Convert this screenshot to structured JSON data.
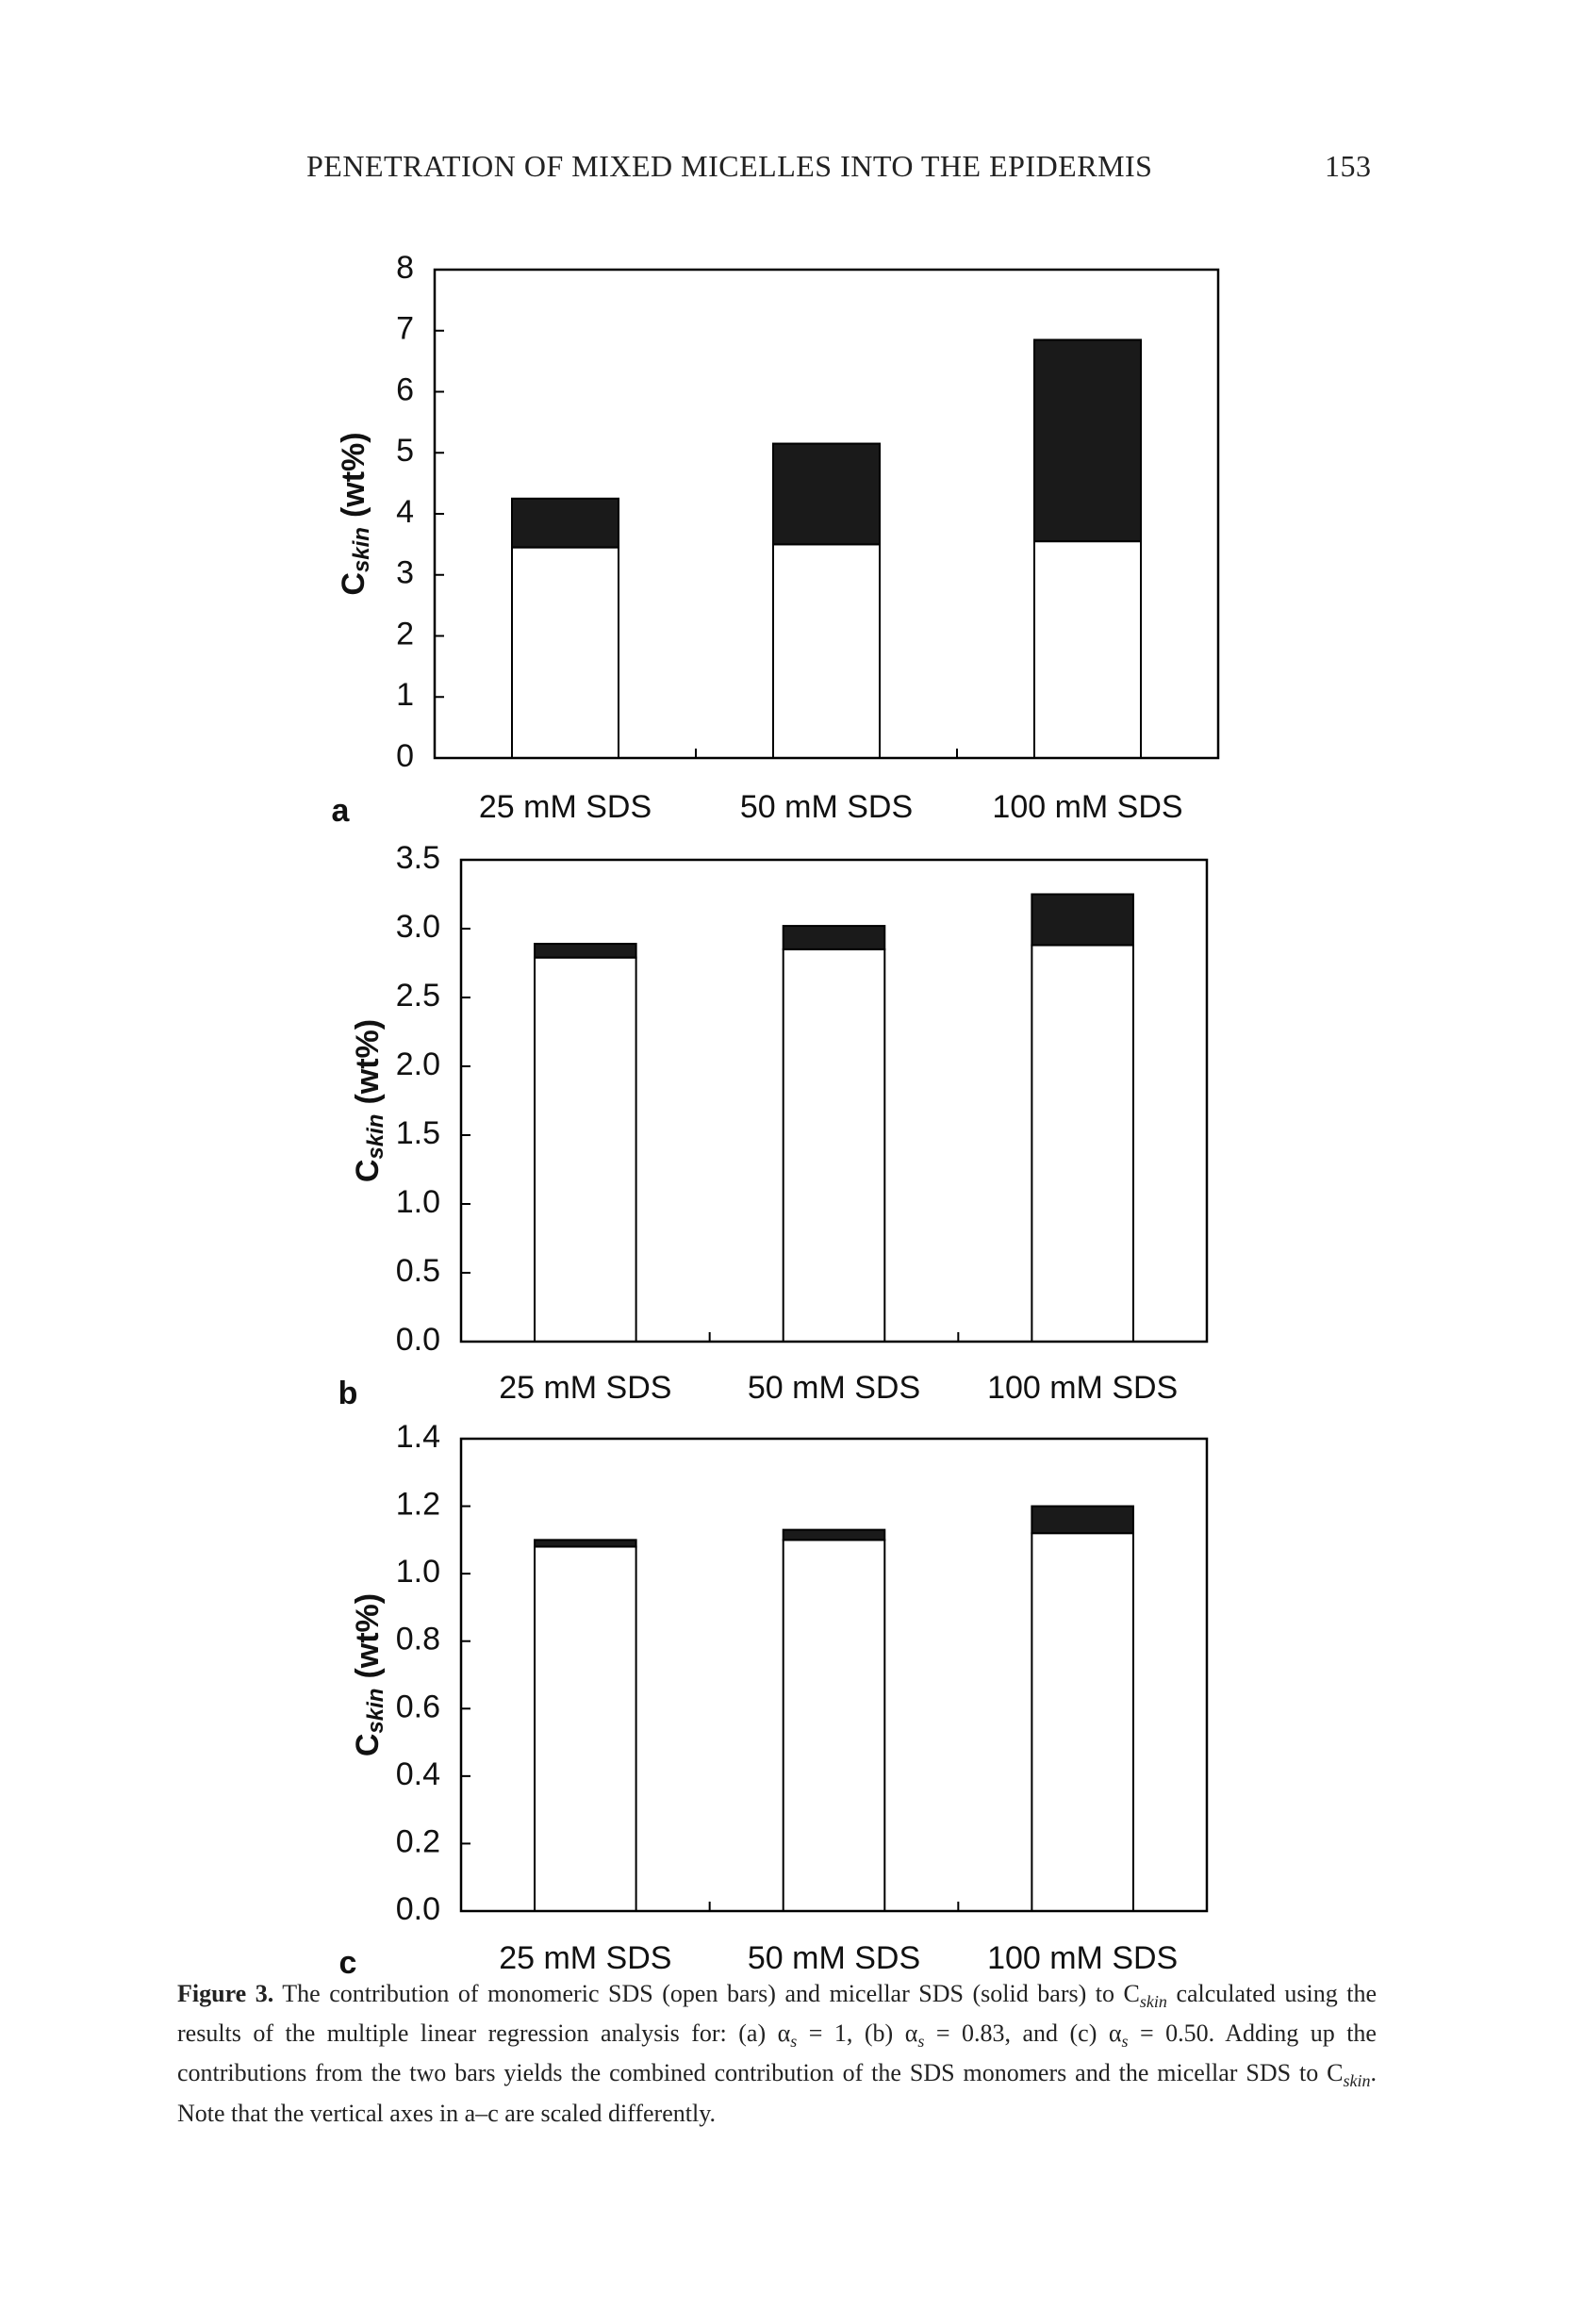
{
  "header": {
    "title": "PENETRATION OF MIXED MICELLES INTO THE EPIDERMIS",
    "page": "153"
  },
  "chart_data": [
    {
      "type": "stacked-bar",
      "panel_label": "a",
      "y_label_symbol": "C",
      "y_label_subscript": "skin",
      "y_label_unit": "(wt%)",
      "categories": [
        "25 mM SDS",
        "50 mM SDS",
        "100 mM SDS"
      ],
      "series": [
        {
          "color": "#ffffff",
          "values": [
            3.45,
            3.5,
            3.55
          ]
        },
        {
          "color": "#1a1a1a",
          "values": [
            0.8,
            1.65,
            3.3
          ]
        }
      ],
      "ylim": [
        0,
        8
      ],
      "yticks": [
        0,
        1,
        2,
        3,
        4,
        5,
        6,
        7,
        8
      ]
    },
    {
      "type": "stacked-bar",
      "panel_label": "b",
      "y_label_symbol": "C",
      "y_label_subscript": "skin",
      "y_label_unit": "(wt%)",
      "categories": [
        "25 mM SDS",
        "50 mM SDS",
        "100 mM SDS"
      ],
      "series": [
        {
          "color": "#ffffff",
          "values": [
            2.79,
            2.85,
            2.88
          ]
        },
        {
          "color": "#1a1a1a",
          "values": [
            0.1,
            0.17,
            0.37
          ]
        }
      ],
      "ylim": [
        0,
        3.5
      ],
      "yticks": [
        {
          "value": 0,
          "label": "0.0"
        },
        0.5,
        {
          "value": 1,
          "label": "1.0"
        },
        1.5,
        {
          "value": 2,
          "label": "2.0"
        },
        2.5,
        {
          "value": 3,
          "label": "3.0"
        },
        3.5
      ]
    },
    {
      "type": "stacked-bar",
      "panel_label": "c",
      "y_label_symbol": "C",
      "y_label_subscript": "skin",
      "y_label_unit": "(wt%)",
      "categories": [
        "25 mM SDS",
        "50 mM SDS",
        "100 mM SDS"
      ],
      "series": [
        {
          "color": "#ffffff",
          "values": [
            1.08,
            1.1,
            1.12
          ]
        },
        {
          "color": "#1a1a1a",
          "values": [
            0.02,
            0.03,
            0.08
          ]
        }
      ],
      "ylim": [
        0,
        1.4
      ],
      "yticks": [
        {
          "value": 0,
          "label": "0.0"
        },
        0.2,
        0.4,
        0.6,
        0.8,
        {
          "value": 1,
          "label": "1.0"
        },
        1.2,
        1.4
      ]
    }
  ],
  "caption": {
    "label": "Figure 3.",
    "parts": [
      " The contribution of monomeric SDS (open bars) and micellar SDS (solid bars) to C",
      "skin",
      " calculated using the results of the multiple linear regression analysis for: (a) α",
      "s",
      " = 1, (b) α",
      "s",
      " = 0.83, and (c) α",
      "s",
      " = 0.50. Adding up the contributions from the two bars yields the combined contribution of the SDS monomers and the micellar SDS to C",
      "skin",
      ". Note that the vertical axes in a–c are scaled differently."
    ]
  }
}
